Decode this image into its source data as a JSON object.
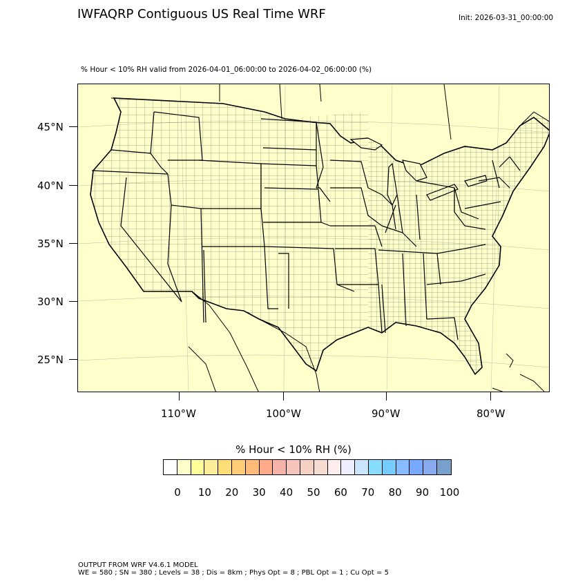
{
  "header": {
    "title": "IWFAQRP Contiguous US Real Time WRF",
    "init": "Init: 2026-03-31_00:00:00",
    "subtitle": "% Hour < 10% RH valid from 2026-04-01_06:00:00 to 2026-04-02_06:00:00   (%)"
  },
  "map": {
    "region": "Contiguous United States",
    "background_color": "#ffffcc",
    "lat_labels": [
      "45°N",
      "40°N",
      "35°N",
      "30°N",
      "25°N"
    ],
    "lon_labels": [
      "110°W",
      "100°W",
      "90°W",
      "80°W"
    ]
  },
  "colorbar": {
    "title": "% Hour < 10% RH  (%)",
    "colors": [
      "#ffffff",
      "#ffffcc",
      "#ffff99",
      "#ffee99",
      "#ffdd77",
      "#ffcc77",
      "#ffbb77",
      "#ffaa88",
      "#f5b3aa",
      "#f5c4bb",
      "#f5d1c4",
      "#f5dbd0",
      "#ffeeee",
      "#eeeeff",
      "#cce5ff",
      "#88ddff",
      "#77ccff",
      "#88bbff",
      "#77aaff",
      "#88aaee",
      "#77a0cc"
    ],
    "tick_labels": [
      "0",
      "10",
      "20",
      "30",
      "40",
      "50",
      "60",
      "70",
      "80",
      "90",
      "100"
    ]
  },
  "footer": {
    "line1": "OUTPUT FROM WRF V4.6.1 MODEL",
    "line2": "WE = 580 ; SN = 380 ; Levels = 38 ; Dis = 8km ; Phys Opt = 8 ; PBL Opt = 1 ; Cu Opt = 5"
  }
}
